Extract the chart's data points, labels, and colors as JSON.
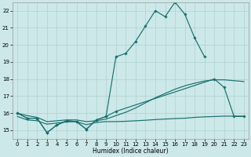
{
  "background_color": "#cce8e8",
  "grid_color": "#aacccc",
  "line_color": "#1a7070",
  "xlabel": "Humidex (Indice chaleur)",
  "ylim": [
    14.5,
    22.5
  ],
  "xlim": [
    -0.5,
    23.5
  ],
  "x_ticks": [
    0,
    1,
    2,
    3,
    4,
    5,
    6,
    7,
    8,
    9,
    10,
    11,
    12,
    13,
    14,
    15,
    16,
    17,
    18,
    19,
    20,
    21,
    22,
    23
  ],
  "y_ticks": [
    15,
    16,
    17,
    18,
    19,
    20,
    21,
    22
  ],
  "curve_spiky_x": [
    0,
    1,
    2,
    3,
    4,
    5,
    6,
    7,
    8,
    9,
    10,
    11,
    12,
    13,
    14,
    15,
    16,
    17,
    18,
    19
  ],
  "curve_spiky_y": [
    16.0,
    15.7,
    15.7,
    14.85,
    15.3,
    15.55,
    15.5,
    15.05,
    15.6,
    15.8,
    19.3,
    19.5,
    20.2,
    21.1,
    22.0,
    21.65,
    22.5,
    21.8,
    20.4,
    19.3
  ],
  "curve_upper_x": [
    0,
    1,
    2,
    3,
    4,
    5,
    6,
    7,
    8,
    9,
    10,
    20,
    21,
    22,
    23
  ],
  "curve_upper_y": [
    16.0,
    15.7,
    15.7,
    14.85,
    15.3,
    15.55,
    15.5,
    15.05,
    15.6,
    15.8,
    16.1,
    18.0,
    17.5,
    15.8,
    15.8
  ],
  "curve_smooth_x": [
    0,
    1,
    2,
    3,
    4,
    5,
    6,
    7,
    8,
    9,
    10,
    11,
    12,
    13,
    14,
    15,
    16,
    17,
    18,
    19,
    20,
    21,
    22,
    23
  ],
  "curve_smooth_y": [
    16.0,
    15.85,
    15.75,
    15.5,
    15.55,
    15.6,
    15.6,
    15.5,
    15.55,
    15.65,
    15.85,
    16.05,
    16.3,
    16.6,
    16.9,
    17.15,
    17.4,
    17.6,
    17.75,
    17.88,
    17.95,
    17.95,
    17.9,
    17.85
  ],
  "curve_bottom_x": [
    0,
    1,
    2,
    3,
    4,
    5,
    6,
    7,
    8,
    9,
    10,
    11,
    12,
    13,
    14,
    15,
    16,
    17,
    18,
    19,
    20,
    21,
    22,
    23
  ],
  "curve_bottom_y": [
    15.8,
    15.6,
    15.55,
    15.35,
    15.42,
    15.48,
    15.5,
    15.32,
    15.45,
    15.5,
    15.5,
    15.52,
    15.55,
    15.58,
    15.62,
    15.65,
    15.68,
    15.7,
    15.75,
    15.78,
    15.8,
    15.82,
    15.82,
    15.82
  ]
}
